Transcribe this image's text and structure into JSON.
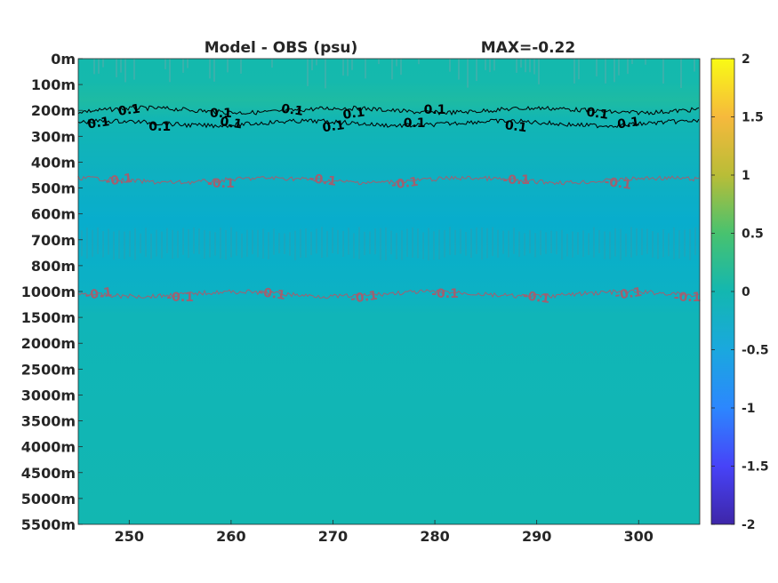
{
  "chart_data": {
    "type": "heatmap",
    "title": "Model - OBS (psu)",
    "max_label": "MAX=-0.22",
    "xlabel": "",
    "ylabel": "",
    "x_ticks": [
      250,
      260,
      270,
      280,
      290,
      300
    ],
    "xlim": [
      245,
      306
    ],
    "y_depth_labels": [
      "0m",
      "100m",
      "200m",
      "300m",
      "400m",
      "500m",
      "600m",
      "700m",
      "800m",
      "1000m",
      "1500m",
      "2000m",
      "2500m",
      "3000m",
      "3500m",
      "4000m",
      "4500m",
      "5000m",
      "5500m"
    ],
    "colorbar": {
      "ticks": [
        "2",
        "1.5",
        "1",
        "0.5",
        "0",
        "-0.5",
        "-1",
        "-1.5",
        "-2"
      ],
      "range": [
        -2,
        2
      ]
    },
    "field_base_value": 0,
    "deep_layer_value": -0.2,
    "contours": [
      {
        "level_label": "0.1",
        "depth": "200m",
        "color": "#000000",
        "label_x": [
          250,
          259,
          266,
          272,
          280,
          296
        ]
      },
      {
        "level_label": "0.1",
        "depth": "250m",
        "color": "#000000",
        "label_x": [
          247,
          253,
          260,
          270,
          278,
          288,
          299
        ]
      },
      {
        "level_label": "-0.1",
        "depth": "470m",
        "color": "#a06070",
        "label_x": [
          249,
          259,
          269,
          277,
          288,
          298
        ]
      },
      {
        "level_label": "-0.1",
        "depth": "1050m",
        "color": "#a06070",
        "label_x": [
          247,
          255,
          264,
          273,
          281,
          290,
          299,
          306
        ]
      }
    ],
    "grid": false
  }
}
